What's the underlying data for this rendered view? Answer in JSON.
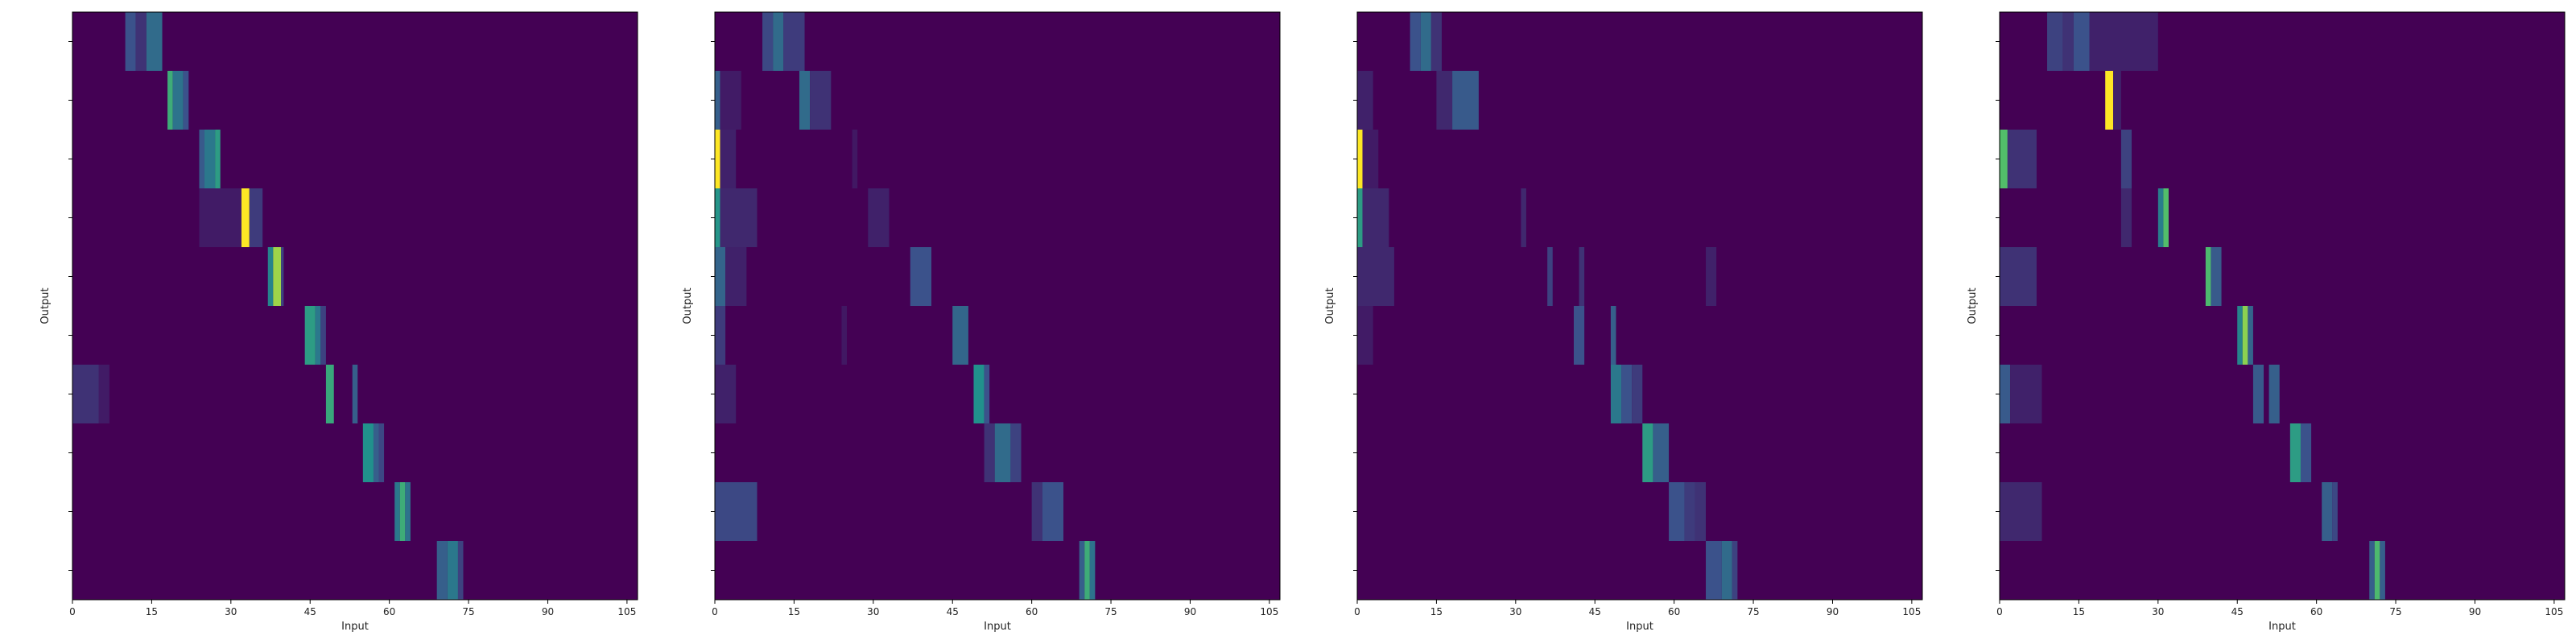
{
  "chart_data": [
    {
      "type": "heatmap",
      "xlabel": "Input",
      "ylabel": "Output",
      "xlim": [
        0,
        107
      ],
      "xticks": [
        "0",
        "15",
        "30",
        "45",
        "60",
        "75",
        "90",
        "105"
      ],
      "rows": 10,
      "colorscale": "viridis",
      "cells": [
        {
          "row": 0,
          "x0": 10,
          "x1": 12,
          "v": 0.25
        },
        {
          "row": 0,
          "x0": 12,
          "x1": 14,
          "v": 0.15
        },
        {
          "row": 0,
          "x0": 14,
          "x1": 17,
          "v": 0.35
        },
        {
          "row": 1,
          "x0": 18,
          "x1": 19,
          "v": 0.62
        },
        {
          "row": 1,
          "x0": 19,
          "x1": 21,
          "v": 0.38
        },
        {
          "row": 1,
          "x0": 21,
          "x1": 22,
          "v": 0.25
        },
        {
          "row": 2,
          "x0": 24,
          "x1": 25,
          "v": 0.28
        },
        {
          "row": 2,
          "x0": 25,
          "x1": 27,
          "v": 0.4
        },
        {
          "row": 2,
          "x0": 27,
          "x1": 28,
          "v": 0.55
        },
        {
          "row": 3,
          "x0": 24,
          "x1": 32,
          "v": 0.08
        },
        {
          "row": 3,
          "x0": 32,
          "x1": 33.5,
          "v": 1.0
        },
        {
          "row": 3,
          "x0": 33.5,
          "x1": 36,
          "v": 0.18
        },
        {
          "row": 4,
          "x0": 37,
          "x1": 38,
          "v": 0.45
        },
        {
          "row": 4,
          "x0": 38,
          "x1": 39.5,
          "v": 0.85
        },
        {
          "row": 4,
          "x0": 39.5,
          "x1": 40,
          "v": 0.2
        },
        {
          "row": 5,
          "x0": 44,
          "x1": 46,
          "v": 0.55
        },
        {
          "row": 5,
          "x0": 46,
          "x1": 47,
          "v": 0.4
        },
        {
          "row": 5,
          "x0": 47,
          "x1": 48,
          "v": 0.2
        },
        {
          "row": 6,
          "x0": 0,
          "x1": 5,
          "v": 0.15
        },
        {
          "row": 6,
          "x0": 5,
          "x1": 7,
          "v": 0.08
        },
        {
          "row": 6,
          "x0": 48,
          "x1": 49.5,
          "v": 0.6
        },
        {
          "row": 6,
          "x0": 53,
          "x1": 54,
          "v": 0.3
        },
        {
          "row": 7,
          "x0": 55,
          "x1": 57,
          "v": 0.5
        },
        {
          "row": 7,
          "x0": 57,
          "x1": 58,
          "v": 0.3
        },
        {
          "row": 7,
          "x0": 58,
          "x1": 59,
          "v": 0.22
        },
        {
          "row": 8,
          "x0": 61,
          "x1": 62,
          "v": 0.4
        },
        {
          "row": 8,
          "x0": 62,
          "x1": 63,
          "v": 0.62
        },
        {
          "row": 8,
          "x0": 63,
          "x1": 64,
          "v": 0.38
        },
        {
          "row": 9,
          "x0": 69,
          "x1": 71,
          "v": 0.3
        },
        {
          "row": 9,
          "x0": 71,
          "x1": 73,
          "v": 0.4
        },
        {
          "row": 9,
          "x0": 73,
          "x1": 74,
          "v": 0.2
        }
      ]
    },
    {
      "type": "heatmap",
      "xlabel": "Input",
      "ylabel": "Output",
      "xlim": [
        0,
        107
      ],
      "xticks": [
        "0",
        "15",
        "30",
        "45",
        "60",
        "75",
        "90",
        "105"
      ],
      "rows": 10,
      "colorscale": "viridis",
      "cells": [
        {
          "row": 0,
          "x0": 9,
          "x1": 11,
          "v": 0.22
        },
        {
          "row": 0,
          "x0": 11,
          "x1": 13,
          "v": 0.35
        },
        {
          "row": 0,
          "x0": 13,
          "x1": 17,
          "v": 0.18
        },
        {
          "row": 1,
          "x0": 0,
          "x1": 1,
          "v": 0.3
        },
        {
          "row": 1,
          "x0": 1,
          "x1": 5,
          "v": 0.08
        },
        {
          "row": 1,
          "x0": 16,
          "x1": 18,
          "v": 0.35
        },
        {
          "row": 1,
          "x0": 18,
          "x1": 22,
          "v": 0.15
        },
        {
          "row": 2,
          "x0": 0,
          "x1": 1,
          "v": 1.0
        },
        {
          "row": 2,
          "x0": 1,
          "x1": 4,
          "v": 0.1
        },
        {
          "row": 2,
          "x0": 26,
          "x1": 27,
          "v": 0.07
        },
        {
          "row": 3,
          "x0": 0,
          "x1": 1,
          "v": 0.52
        },
        {
          "row": 3,
          "x0": 1,
          "x1": 8,
          "v": 0.12
        },
        {
          "row": 3,
          "x0": 29,
          "x1": 33,
          "v": 0.1
        },
        {
          "row": 4,
          "x0": 0,
          "x1": 2,
          "v": 0.32
        },
        {
          "row": 4,
          "x0": 2,
          "x1": 6,
          "v": 0.1
        },
        {
          "row": 4,
          "x0": 37,
          "x1": 41,
          "v": 0.25
        },
        {
          "row": 5,
          "x0": 0,
          "x1": 2,
          "v": 0.18
        },
        {
          "row": 5,
          "x0": 24,
          "x1": 25,
          "v": 0.07
        },
        {
          "row": 5,
          "x0": 45,
          "x1": 48,
          "v": 0.33
        },
        {
          "row": 6,
          "x0": 0,
          "x1": 4,
          "v": 0.1
        },
        {
          "row": 6,
          "x0": 49,
          "x1": 51,
          "v": 0.5
        },
        {
          "row": 6,
          "x0": 51,
          "x1": 52,
          "v": 0.25
        },
        {
          "row": 7,
          "x0": 51,
          "x1": 53,
          "v": 0.15
        },
        {
          "row": 7,
          "x0": 53,
          "x1": 56,
          "v": 0.35
        },
        {
          "row": 7,
          "x0": 56,
          "x1": 58,
          "v": 0.2
        },
        {
          "row": 8,
          "x0": 0,
          "x1": 8,
          "v": 0.22
        },
        {
          "row": 8,
          "x0": 60,
          "x1": 62,
          "v": 0.15
        },
        {
          "row": 8,
          "x0": 62,
          "x1": 66,
          "v": 0.25
        },
        {
          "row": 9,
          "x0": 69,
          "x1": 70,
          "v": 0.3
        },
        {
          "row": 9,
          "x0": 70,
          "x1": 71,
          "v": 0.62
        },
        {
          "row": 9,
          "x0": 71,
          "x1": 72,
          "v": 0.38
        }
      ]
    },
    {
      "type": "heatmap",
      "xlabel": "Input",
      "ylabel": "Output",
      "xlim": [
        0,
        107
      ],
      "xticks": [
        "0",
        "15",
        "30",
        "45",
        "60",
        "75",
        "90",
        "105"
      ],
      "rows": 10,
      "colorscale": "viridis",
      "cells": [
        {
          "row": 0,
          "x0": 10,
          "x1": 12,
          "v": 0.25
        },
        {
          "row": 0,
          "x0": 12,
          "x1": 14,
          "v": 0.35
        },
        {
          "row": 0,
          "x0": 14,
          "x1": 16,
          "v": 0.15
        },
        {
          "row": 1,
          "x0": 0,
          "x1": 3,
          "v": 0.1
        },
        {
          "row": 1,
          "x0": 15,
          "x1": 18,
          "v": 0.12
        },
        {
          "row": 1,
          "x0": 18,
          "x1": 23,
          "v": 0.28
        },
        {
          "row": 2,
          "x0": 0,
          "x1": 1,
          "v": 1.0
        },
        {
          "row": 2,
          "x0": 1,
          "x1": 4,
          "v": 0.08
        },
        {
          "row": 3,
          "x0": 0,
          "x1": 1,
          "v": 0.55
        },
        {
          "row": 3,
          "x0": 1,
          "x1": 6,
          "v": 0.12
        },
        {
          "row": 3,
          "x0": 31,
          "x1": 32,
          "v": 0.12
        },
        {
          "row": 4,
          "x0": 0,
          "x1": 7,
          "v": 0.12
        },
        {
          "row": 4,
          "x0": 36,
          "x1": 37,
          "v": 0.2
        },
        {
          "row": 4,
          "x0": 42,
          "x1": 43,
          "v": 0.15
        },
        {
          "row": 4,
          "x0": 66,
          "x1": 68,
          "v": 0.1
        },
        {
          "row": 5,
          "x0": 0,
          "x1": 3,
          "v": 0.08
        },
        {
          "row": 5,
          "x0": 41,
          "x1": 43,
          "v": 0.25
        },
        {
          "row": 5,
          "x0": 48,
          "x1": 49,
          "v": 0.3
        },
        {
          "row": 6,
          "x0": 48,
          "x1": 50,
          "v": 0.4
        },
        {
          "row": 6,
          "x0": 50,
          "x1": 52,
          "v": 0.25
        },
        {
          "row": 6,
          "x0": 52,
          "x1": 54,
          "v": 0.18
        },
        {
          "row": 7,
          "x0": 54,
          "x1": 56,
          "v": 0.55
        },
        {
          "row": 7,
          "x0": 56,
          "x1": 59,
          "v": 0.3
        },
        {
          "row": 8,
          "x0": 59,
          "x1": 62,
          "v": 0.25
        },
        {
          "row": 8,
          "x0": 62,
          "x1": 64,
          "v": 0.18
        },
        {
          "row": 8,
          "x0": 64,
          "x1": 66,
          "v": 0.15
        },
        {
          "row": 9,
          "x0": 66,
          "x1": 69,
          "v": 0.25
        },
        {
          "row": 9,
          "x0": 69,
          "x1": 71,
          "v": 0.35
        },
        {
          "row": 9,
          "x0": 71,
          "x1": 72,
          "v": 0.2
        }
      ]
    },
    {
      "type": "heatmap",
      "xlabel": "Input",
      "ylabel": "Output",
      "xlim": [
        0,
        107
      ],
      "xticks": [
        "0",
        "15",
        "30",
        "45",
        "60",
        "75",
        "90",
        "105"
      ],
      "rows": 10,
      "colorscale": "viridis",
      "cells": [
        {
          "row": 0,
          "x0": 9,
          "x1": 12,
          "v": 0.2
        },
        {
          "row": 0,
          "x0": 12,
          "x1": 14,
          "v": 0.15
        },
        {
          "row": 0,
          "x0": 14,
          "x1": 17,
          "v": 0.25
        },
        {
          "row": 0,
          "x0": 17,
          "x1": 30,
          "v": 0.1
        },
        {
          "row": 1,
          "x0": 20,
          "x1": 21.5,
          "v": 1.0
        },
        {
          "row": 1,
          "x0": 21.5,
          "x1": 23,
          "v": 0.1
        },
        {
          "row": 2,
          "x0": 0,
          "x1": 1.5,
          "v": 0.7
        },
        {
          "row": 2,
          "x0": 1.5,
          "x1": 7,
          "v": 0.15
        },
        {
          "row": 2,
          "x0": 23,
          "x1": 25,
          "v": 0.2
        },
        {
          "row": 3,
          "x0": 23,
          "x1": 25,
          "v": 0.12
        },
        {
          "row": 3,
          "x0": 30,
          "x1": 31,
          "v": 0.42
        },
        {
          "row": 3,
          "x0": 31,
          "x1": 32,
          "v": 0.7
        },
        {
          "row": 4,
          "x0": 0,
          "x1": 7,
          "v": 0.15
        },
        {
          "row": 4,
          "x0": 39,
          "x1": 40,
          "v": 0.68
        },
        {
          "row": 4,
          "x0": 40,
          "x1": 42,
          "v": 0.28
        },
        {
          "row": 5,
          "x0": 45,
          "x1": 46,
          "v": 0.45
        },
        {
          "row": 5,
          "x0": 46,
          "x1": 47,
          "v": 0.82
        },
        {
          "row": 5,
          "x0": 47,
          "x1": 48,
          "v": 0.32
        },
        {
          "row": 6,
          "x0": 0,
          "x1": 2,
          "v": 0.28
        },
        {
          "row": 6,
          "x0": 2,
          "x1": 8,
          "v": 0.1
        },
        {
          "row": 6,
          "x0": 48,
          "x1": 50,
          "v": 0.28
        },
        {
          "row": 6,
          "x0": 51,
          "x1": 53,
          "v": 0.3
        },
        {
          "row": 7,
          "x0": 55,
          "x1": 57,
          "v": 0.55
        },
        {
          "row": 7,
          "x0": 57,
          "x1": 59,
          "v": 0.25
        },
        {
          "row": 8,
          "x0": 0,
          "x1": 8,
          "v": 0.12
        },
        {
          "row": 8,
          "x0": 61,
          "x1": 63,
          "v": 0.3
        },
        {
          "row": 8,
          "x0": 63,
          "x1": 64,
          "v": 0.22
        },
        {
          "row": 9,
          "x0": 70,
          "x1": 71,
          "v": 0.3
        },
        {
          "row": 9,
          "x0": 71,
          "x1": 72,
          "v": 0.68
        },
        {
          "row": 9,
          "x0": 72,
          "x1": 73,
          "v": 0.3
        }
      ]
    }
  ]
}
